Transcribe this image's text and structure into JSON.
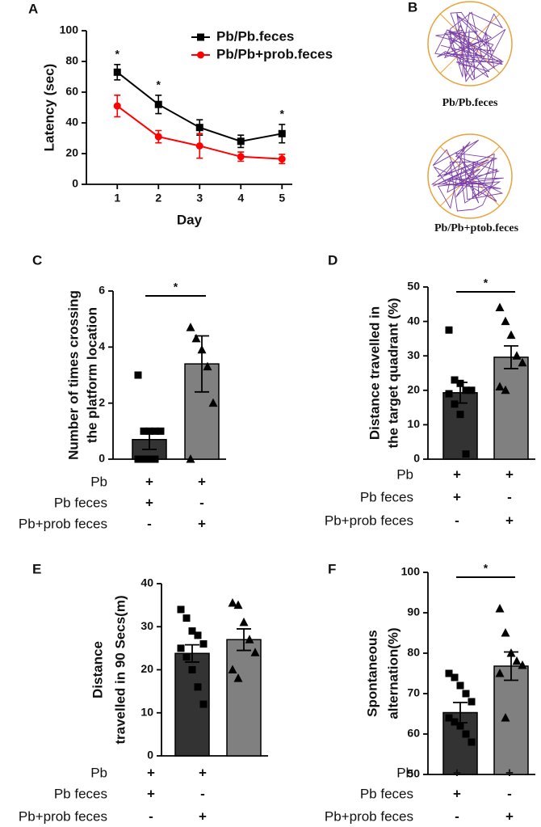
{
  "chart_data": [
    {
      "panel": "A",
      "type": "line",
      "xlabel": "Day",
      "ylabel": "Latency (sec)",
      "x": [
        1,
        2,
        3,
        4,
        5
      ],
      "xlim": [
        0.25,
        5.25
      ],
      "xticks": [
        1,
        2,
        3,
        4,
        5
      ],
      "ylim": [
        0,
        100
      ],
      "yticks": [
        0,
        20,
        40,
        60,
        80,
        100
      ],
      "legend": "upper right",
      "series": [
        {
          "name": "Pb/Pb.feces",
          "color": "#000000",
          "marker": "square",
          "values": [
            73,
            52,
            37,
            28,
            33
          ],
          "errors": [
            5,
            6,
            5,
            4,
            6
          ]
        },
        {
          "name": "Pb/Pb+prob.feces",
          "color": "#ff0000",
          "marker": "circle",
          "values": [
            51,
            31,
            25,
            18,
            16.5
          ],
          "errors": [
            7,
            4,
            8,
            3,
            3
          ]
        }
      ],
      "annotations": [
        {
          "x": 1,
          "label": "*"
        },
        {
          "x": 2,
          "label": "*"
        },
        {
          "x": 5,
          "label": "*"
        }
      ]
    },
    {
      "panel": "C",
      "type": "bar",
      "ylabel": [
        "Number of times crossing",
        "the platform location"
      ],
      "ylim": [
        0,
        6
      ],
      "yticks": [
        0,
        2,
        4,
        6
      ],
      "annotation": "*",
      "groups": [
        {
          "color": "#333333",
          "marker": "square",
          "value": 0.7,
          "error": 0.35,
          "points": [
            3,
            1,
            1,
            1,
            1,
            0,
            0,
            0,
            0
          ]
        },
        {
          "color": "#808080",
          "marker": "triangle",
          "value": 3.4,
          "error": 1.0,
          "points": [
            4.7,
            4.3,
            3.9,
            3.3,
            2.0,
            0
          ]
        }
      ],
      "conditions": [
        {
          "name": "Pb",
          "signs": [
            "+",
            "+"
          ]
        },
        {
          "name": "Pb feces",
          "signs": [
            "+",
            "-"
          ]
        },
        {
          "name": "Pb+prob feces",
          "signs": [
            "-",
            "+"
          ]
        }
      ]
    },
    {
      "panel": "D",
      "type": "bar",
      "ylabel": [
        "Distance travelled in",
        "the target quadrant (%)"
      ],
      "ylim": [
        0,
        50
      ],
      "yticks": [
        0,
        10,
        20,
        30,
        40,
        50
      ],
      "annotation": "*",
      "groups": [
        {
          "color": "#333333",
          "marker": "square",
          "value": 19.3,
          "error": 3,
          "points": [
            37.5,
            23,
            22,
            20,
            20,
            19,
            16,
            13,
            1.5
          ]
        },
        {
          "color": "#808080",
          "marker": "triangle",
          "value": 29.6,
          "error": 3.3,
          "points": [
            44,
            40,
            36,
            30,
            28,
            21,
            20
          ]
        }
      ],
      "conditions": [
        {
          "name": "Pb",
          "signs": [
            "+",
            "+"
          ]
        },
        {
          "name": "Pb feces",
          "signs": [
            "+",
            "-"
          ]
        },
        {
          "name": "Pb+prob feces",
          "signs": [
            "-",
            "+"
          ]
        }
      ]
    },
    {
      "panel": "E",
      "type": "bar",
      "ylabel": [
        "Distance",
        "travelled in 90 Secs(m)"
      ],
      "ylim": [
        0,
        40
      ],
      "yticks": [
        0,
        10,
        20,
        30,
        40
      ],
      "groups": [
        {
          "color": "#333333",
          "marker": "square",
          "value": 23.8,
          "error": 2,
          "points": [
            34,
            32,
            29,
            28,
            26,
            25,
            23,
            20,
            16,
            12
          ]
        },
        {
          "color": "#808080",
          "marker": "triangle",
          "value": 27,
          "error": 2.5,
          "points": [
            35.5,
            35,
            31,
            27,
            24,
            20,
            18
          ]
        }
      ],
      "conditions": [
        {
          "name": "Pb",
          "signs": [
            "+",
            "+"
          ]
        },
        {
          "name": "Pb feces",
          "signs": [
            "+",
            "-"
          ]
        },
        {
          "name": "Pb+prob feces",
          "signs": [
            "-",
            "+"
          ]
        }
      ]
    },
    {
      "panel": "F",
      "type": "bar",
      "ylabel": [
        "Spontaneous",
        "alternation(%)"
      ],
      "ylim": [
        50,
        100
      ],
      "yticks": [
        50,
        60,
        70,
        80,
        90,
        100
      ],
      "annotation": "*",
      "groups": [
        {
          "color": "#333333",
          "marker": "square",
          "value": 65.3,
          "error": 2.5,
          "points": [
            75,
            74,
            72,
            70,
            68,
            64,
            63,
            62,
            60,
            58
          ]
        },
        {
          "color": "#808080",
          "marker": "triangle",
          "value": 76.8,
          "error": 3.5,
          "points": [
            91,
            85,
            80,
            78,
            77,
            75,
            64
          ]
        }
      ],
      "conditions": [
        {
          "name": "Pb",
          "signs": [
            "+",
            "+"
          ]
        },
        {
          "name": "Pb feces",
          "signs": [
            "+",
            "-"
          ]
        },
        {
          "name": "Pb+prob feces",
          "signs": [
            "-",
            "+"
          ]
        }
      ]
    }
  ],
  "panel_b": {
    "label": "B",
    "captions": [
      "Pb/Pb.feces",
      "Pb/Pb+ptob.feces"
    ]
  }
}
